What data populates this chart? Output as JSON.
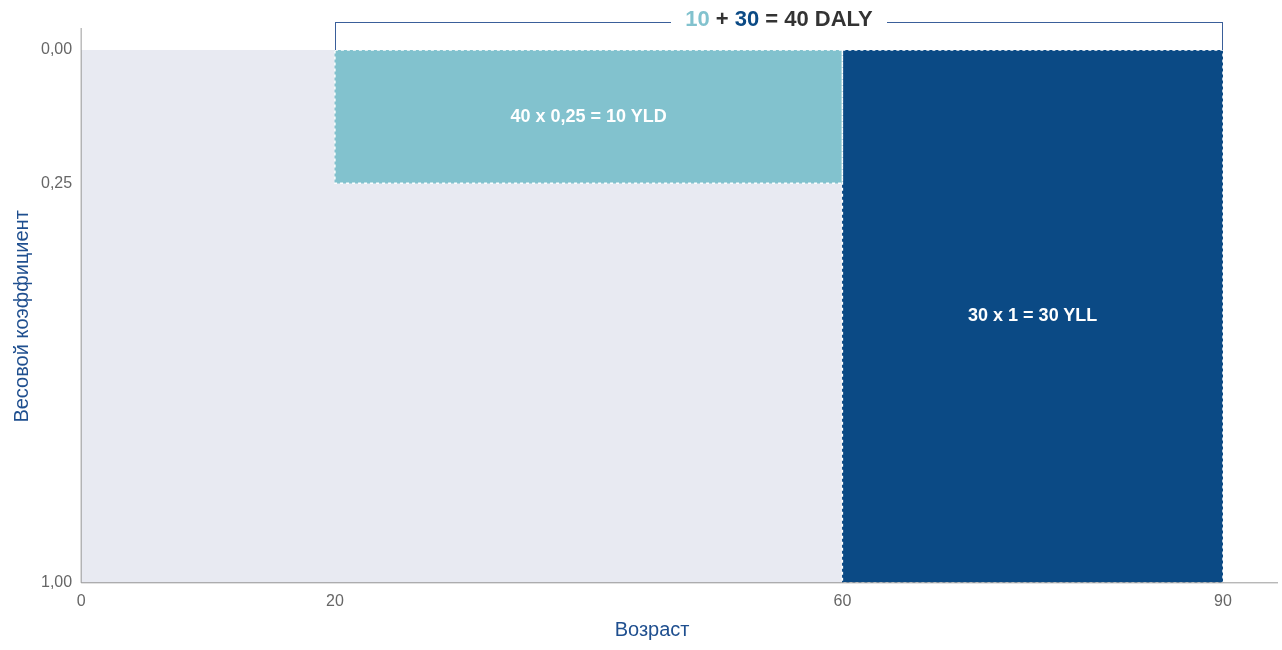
{
  "chart_data": {
    "type": "histogram",
    "title": "10 + 30 = 40 DALY",
    "xlabel": "Возраст",
    "ylabel": "Весовой коэффициент",
    "bins": [
      20,
      60,
      90
    ],
    "values": [
      0.25,
      1
    ],
    "colors": [
      "#82c2ce",
      "#0b4a85"
    ],
    "xlim": [
      0,
      90
    ],
    "xticks": [
      0,
      20,
      60,
      90
    ],
    "ylim": [
      1,
      0
    ],
    "yticks": [
      {
        "value": 0,
        "label": "0,00"
      },
      {
        "value": 0.25,
        "label": "0,25"
      },
      {
        "value": 1,
        "label": "1,00"
      }
    ],
    "annotations": [
      "40 x 0,25 = 10 YLD",
      "30 x 1 = 30 YLL"
    ]
  }
}
